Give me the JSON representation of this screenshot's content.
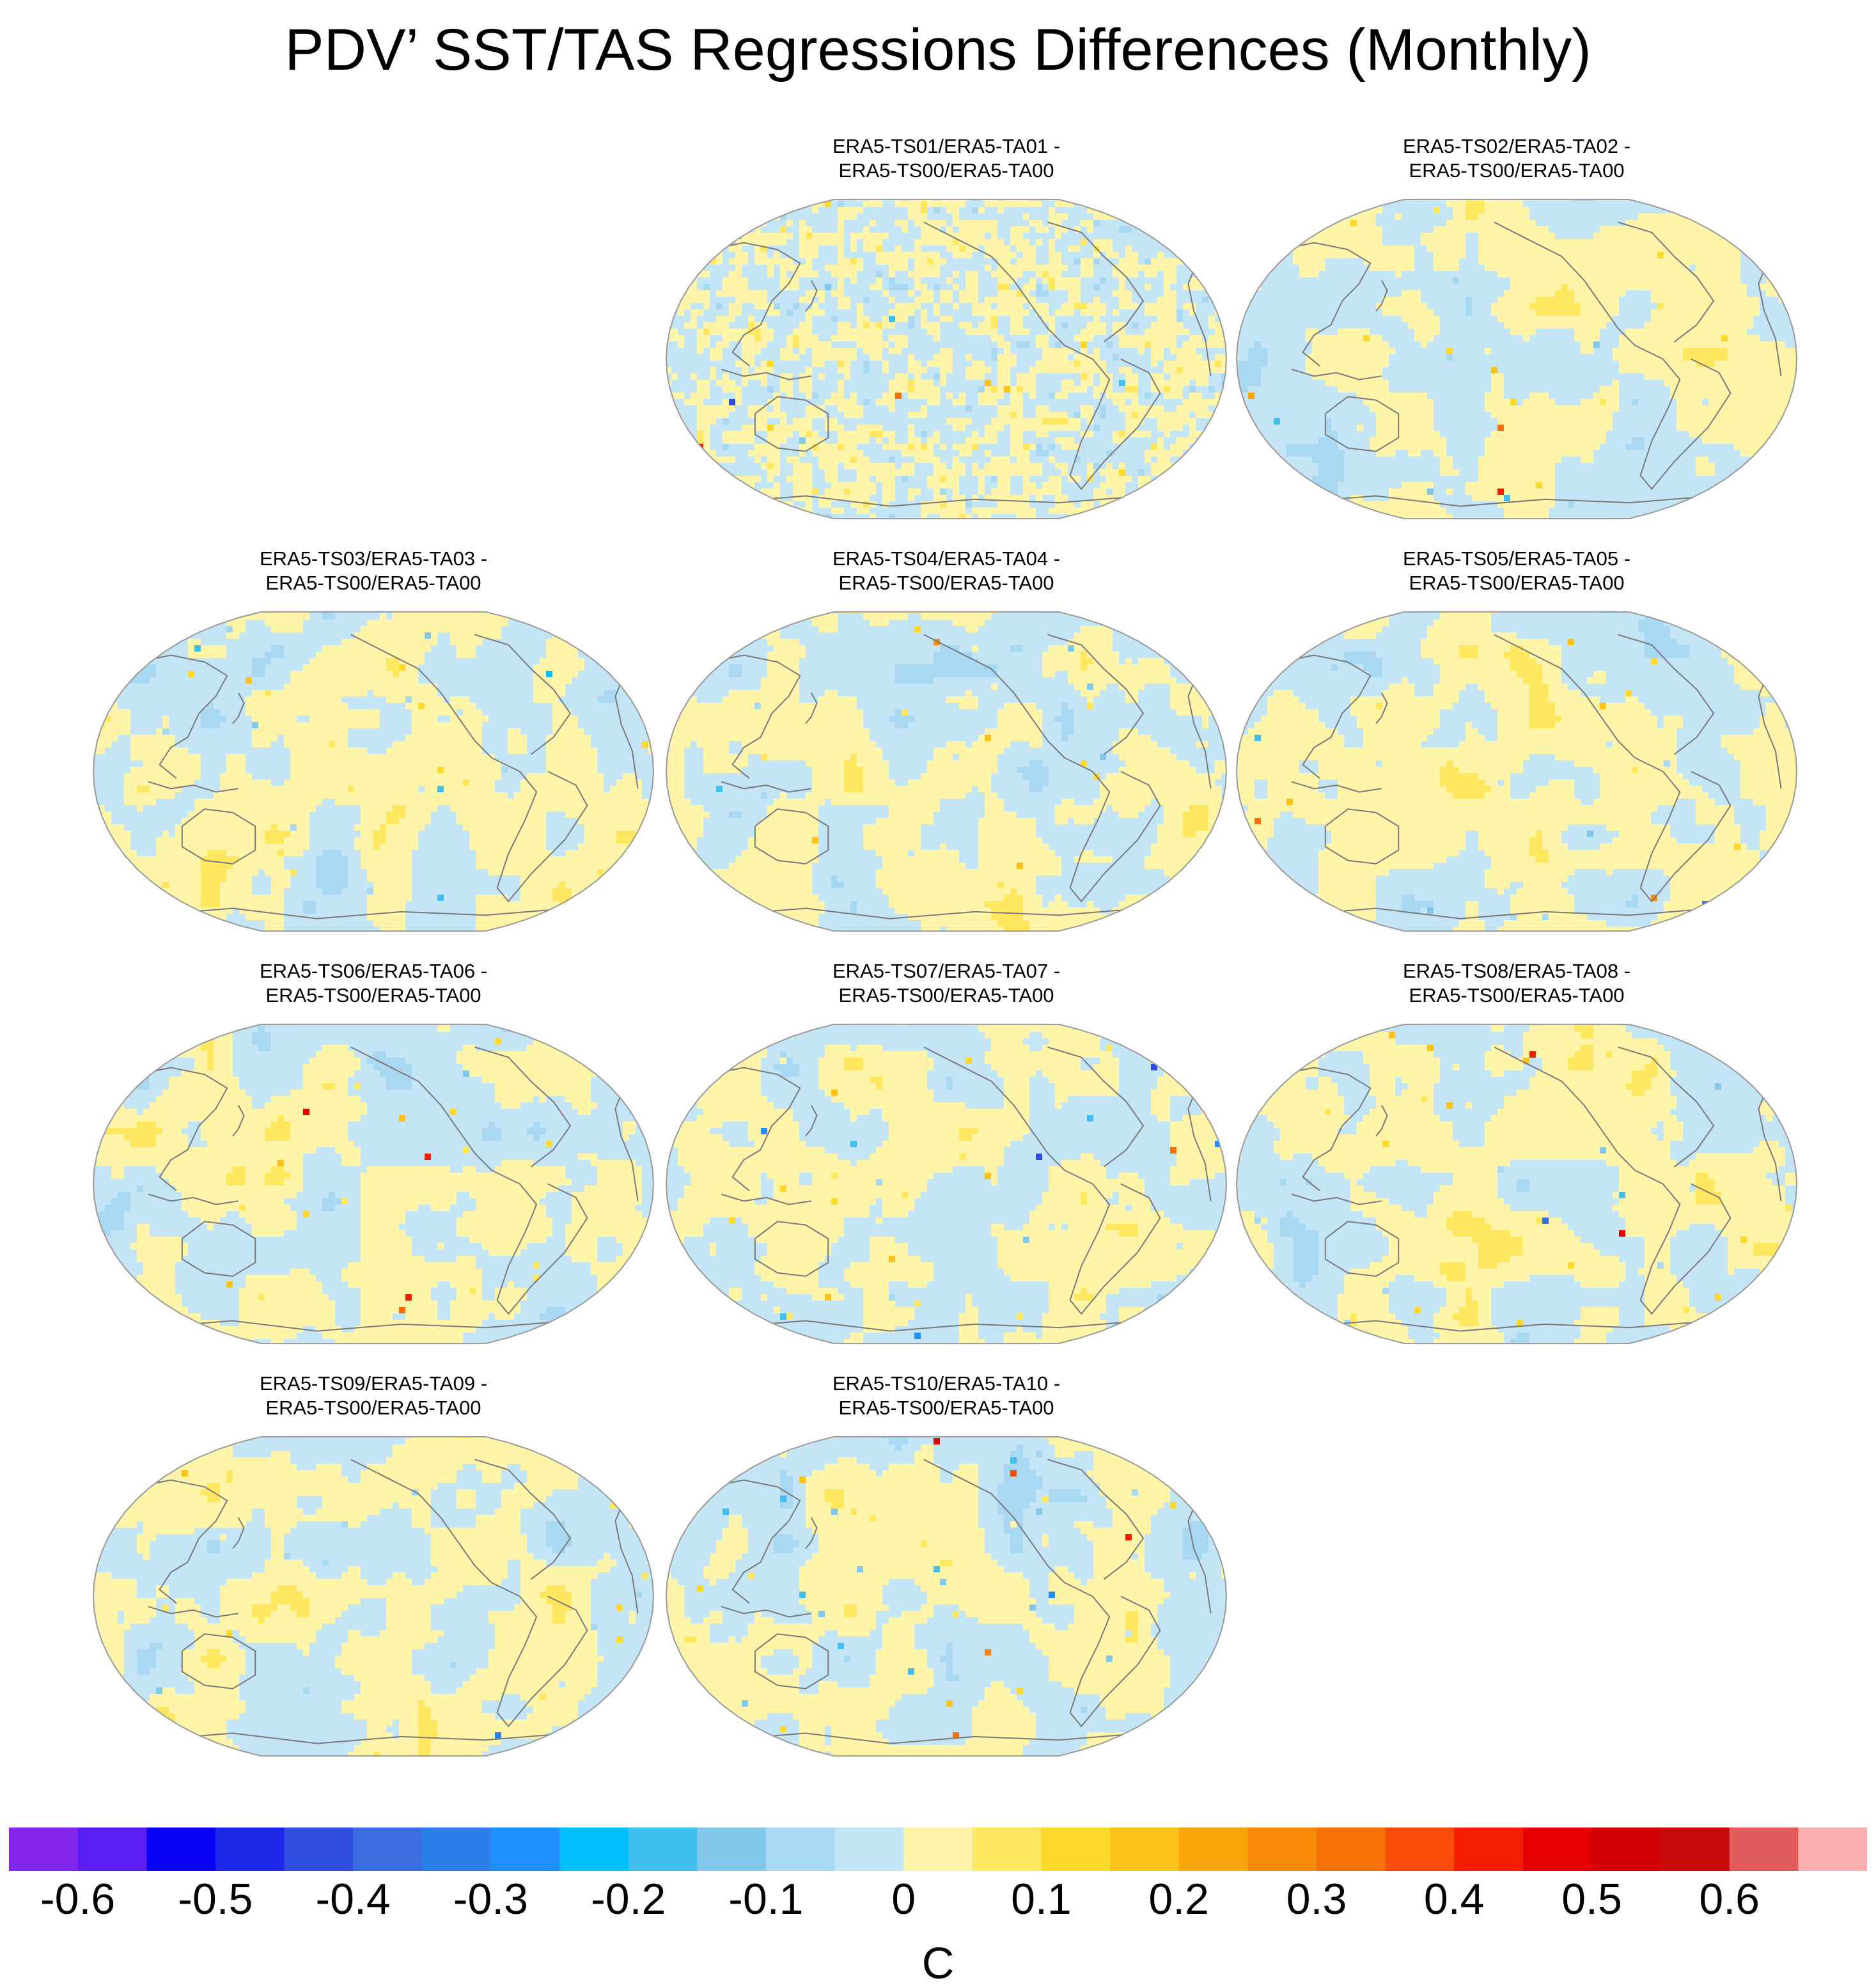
{
  "chart_data": {
    "type": "heatmap",
    "projection": "Robinson (Pacific-centered global map)",
    "title": "PDV’ SST/TAS Regressions Differences (Monthly)",
    "layout": "4 rows x 3 columns; empty cells at row 1 col 1, row 4 col 3",
    "panels": [
      {
        "id": "01",
        "line1": "ERA5-TS01/ERA5-TA01 -",
        "line2": "ERA5-TS00/ERA5-TA00",
        "row": 0,
        "col": 1
      },
      {
        "id": "02",
        "line1": "ERA5-TS02/ERA5-TA02 -",
        "line2": "ERA5-TS00/ERA5-TA00",
        "row": 0,
        "col": 2
      },
      {
        "id": "03",
        "line1": "ERA5-TS03/ERA5-TA03 -",
        "line2": "ERA5-TS00/ERA5-TA00",
        "row": 1,
        "col": 0
      },
      {
        "id": "04",
        "line1": "ERA5-TS04/ERA5-TA04 -",
        "line2": "ERA5-TS00/ERA5-TA00",
        "row": 1,
        "col": 1
      },
      {
        "id": "05",
        "line1": "ERA5-TS05/ERA5-TA05 -",
        "line2": "ERA5-TS00/ERA5-TA00",
        "row": 1,
        "col": 2
      },
      {
        "id": "06",
        "line1": "ERA5-TS06/ERA5-TA06 -",
        "line2": "ERA5-TS00/ERA5-TA00",
        "row": 2,
        "col": 0
      },
      {
        "id": "07",
        "line1": "ERA5-TS07/ERA5-TA07 -",
        "line2": "ERA5-TS00/ERA5-TA00",
        "row": 2,
        "col": 1
      },
      {
        "id": "08",
        "line1": "ERA5-TS08/ERA5-TA08 -",
        "line2": "ERA5-TS00/ERA5-TA00",
        "row": 2,
        "col": 2
      },
      {
        "id": "09",
        "line1": "ERA5-TS09/ERA5-TA09 -",
        "line2": "ERA5-TS00/ERA5-TA00",
        "row": 3,
        "col": 0
      },
      {
        "id": "10",
        "line1": "ERA5-TS10/ERA5-TA10 -",
        "line2": "ERA5-TS00/ERA5-TA00",
        "row": 3,
        "col": 1
      }
    ],
    "value_range": [
      -0.7,
      0.7
    ],
    "dominant_values": "mostly between -0.05 and 0.05; sparse extremes up to about ±0.5 over land (Asia, North America, Antarctica)",
    "colorbar": {
      "unit": "C",
      "tick_labels": [
        "-0.6",
        "-0.5",
        "-0.4",
        "-0.3",
        "-0.2",
        "-0.1",
        "0",
        "0.1",
        "0.2",
        "0.3",
        "0.4",
        "0.5",
        "0.6"
      ],
      "ticks": [
        -0.6,
        -0.5,
        -0.4,
        -0.3,
        -0.2,
        -0.1,
        0,
        0.1,
        0.2,
        0.3,
        0.4,
        0.5,
        0.6
      ],
      "bin_width": 0.05,
      "colors": [
        "#8426f0",
        "#5a1df2",
        "#0a00f5",
        "#1d27e8",
        "#2f4ee0",
        "#3a6ee0",
        "#2b7fe9",
        "#1e90ff",
        "#00bfff",
        "#41c0f0",
        "#82c8ea",
        "#a9d8f3",
        "#c4e5f5",
        "#fff5a8",
        "#ffe760",
        "#fdd92c",
        "#fcc21a",
        "#fba50c",
        "#f98a0a",
        "#f87108",
        "#f84c07",
        "#f61d05",
        "#e60004",
        "#d10004",
        "#c80a0a",
        "#e05c5c",
        "#fbb0b0"
      ]
    }
  }
}
